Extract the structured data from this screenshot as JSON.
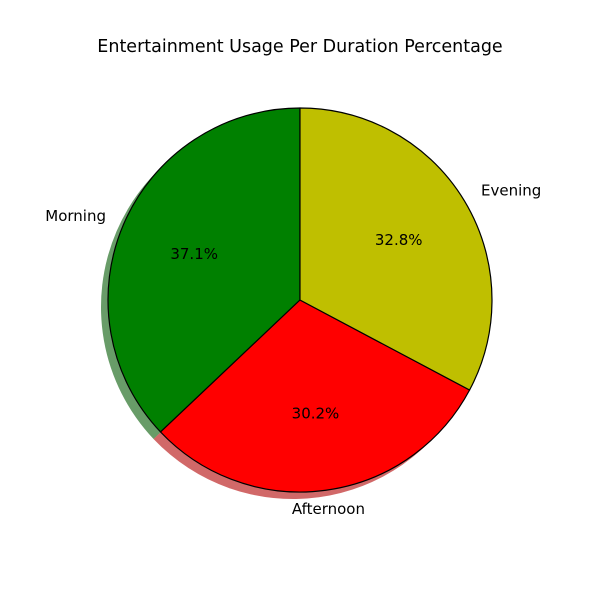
{
  "chart_data": {
    "type": "pie",
    "title": "Entertainment Usage Per Duration Percentage",
    "slices": [
      {
        "label": "Morning",
        "value": 37.1,
        "pct_label": "37.1%",
        "color": "#008000"
      },
      {
        "label": "Afternoon",
        "value": 30.2,
        "pct_label": "30.2%",
        "color": "#ff0000"
      },
      {
        "label": "Evening",
        "value": 32.8,
        "pct_label": "32.8%",
        "color": "#bfbf00"
      }
    ],
    "start_angle_deg": 90,
    "direction": "counterclockwise",
    "shadow": true,
    "edge_color": "#000000"
  }
}
